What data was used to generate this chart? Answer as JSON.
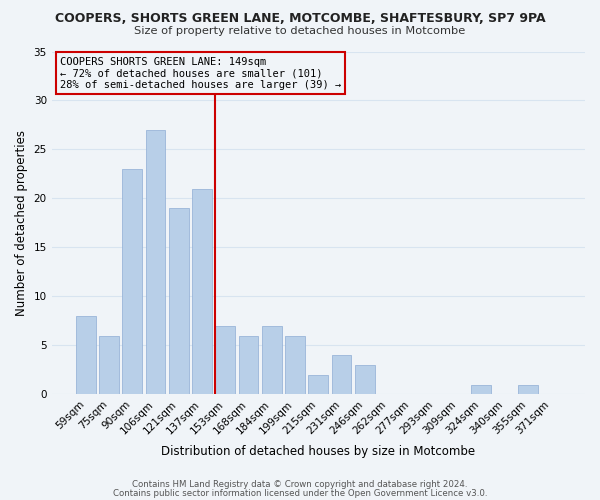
{
  "title_line1": "COOPERS, SHORTS GREEN LANE, MOTCOMBE, SHAFTESBURY, SP7 9PA",
  "title_line2": "Size of property relative to detached houses in Motcombe",
  "xlabel": "Distribution of detached houses by size in Motcombe",
  "ylabel": "Number of detached properties",
  "footer_line1": "Contains HM Land Registry data © Crown copyright and database right 2024.",
  "footer_line2": "Contains public sector information licensed under the Open Government Licence v3.0.",
  "bar_labels": [
    "59sqm",
    "75sqm",
    "90sqm",
    "106sqm",
    "121sqm",
    "137sqm",
    "153sqm",
    "168sqm",
    "184sqm",
    "199sqm",
    "215sqm",
    "231sqm",
    "246sqm",
    "262sqm",
    "277sqm",
    "293sqm",
    "309sqm",
    "324sqm",
    "340sqm",
    "355sqm",
    "371sqm"
  ],
  "bar_values": [
    8,
    6,
    23,
    27,
    19,
    21,
    7,
    6,
    7,
    6,
    2,
    4,
    3,
    0,
    0,
    0,
    0,
    1,
    0,
    1,
    0
  ],
  "bar_color": "#b8cfe8",
  "bar_edge_color": "#9ab5d9",
  "vline_index": 6,
  "vline_color": "#cc0000",
  "ylim": [
    0,
    35
  ],
  "yticks": [
    0,
    5,
    10,
    15,
    20,
    25,
    30,
    35
  ],
  "annotation_title": "COOPERS SHORTS GREEN LANE: 149sqm",
  "annotation_line1": "← 72% of detached houses are smaller (101)",
  "annotation_line2": "28% of semi-detached houses are larger (39) →",
  "background_color": "#f0f4f8",
  "grid_color": "#d8e4f0"
}
